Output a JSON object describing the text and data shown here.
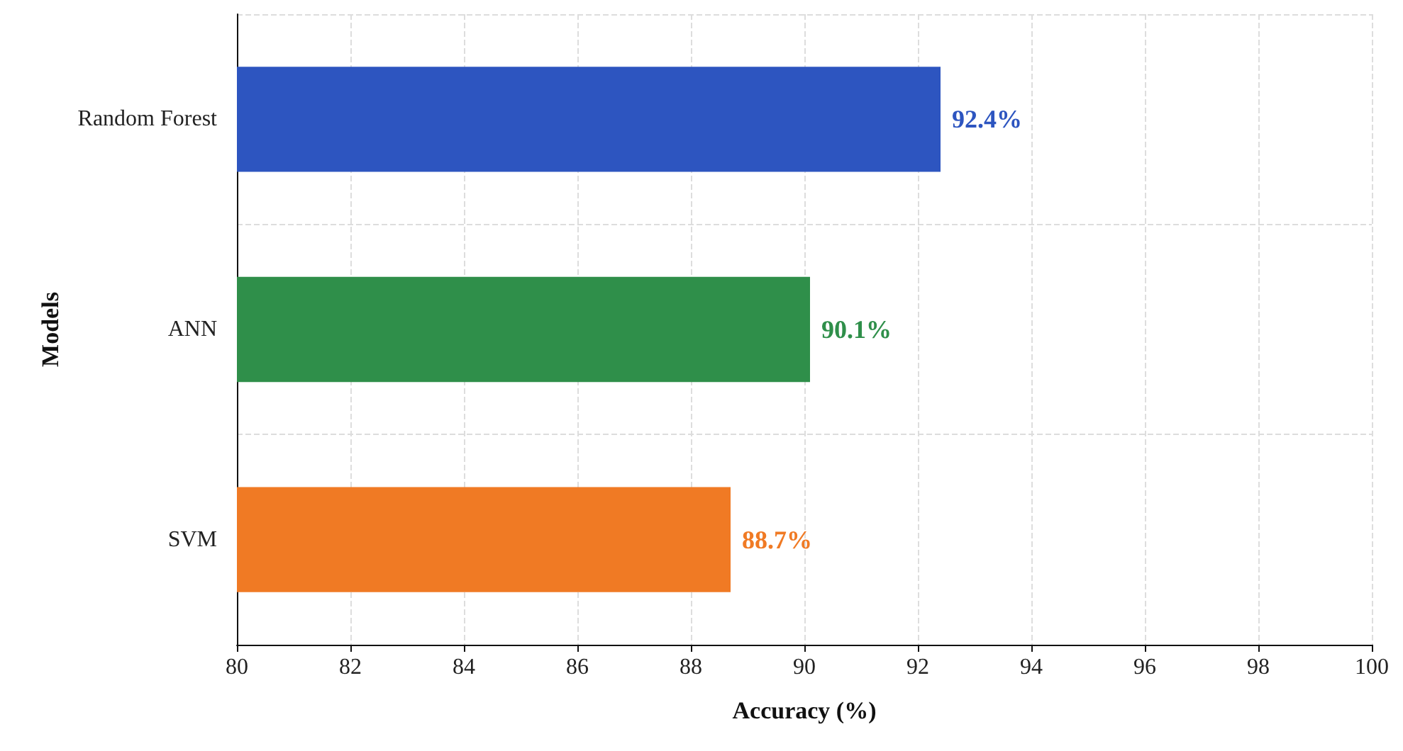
{
  "chart_data": {
    "type": "bar",
    "orientation": "horizontal",
    "xlabel": "Accuracy (%)",
    "ylabel": "Models",
    "categories": [
      "Random Forest",
      "ANN",
      "SVM"
    ],
    "values": [
      92.4,
      90.1,
      88.7
    ],
    "colors": [
      "#2d55c0",
      "#2f8f4a",
      "#f07a24"
    ],
    "value_labels": [
      "92.4%",
      "90.1%",
      "88.7%"
    ],
    "xlim": [
      80,
      100
    ],
    "xticks": [
      80,
      82,
      84,
      86,
      88,
      90,
      92,
      94,
      96,
      98,
      100
    ],
    "grid": true
  }
}
